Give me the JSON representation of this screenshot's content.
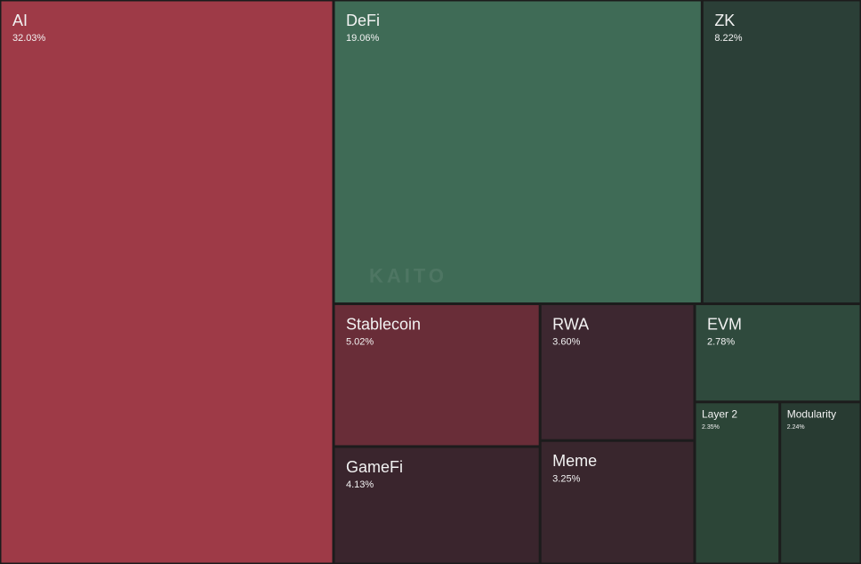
{
  "chart_data": {
    "type": "treemap",
    "watermark": "KAITO",
    "categories": [
      "AI",
      "DeFi",
      "ZK",
      "Stablecoin",
      "RWA",
      "EVM",
      "GameFi",
      "Meme",
      "Layer 2",
      "Modularity"
    ],
    "values": [
      32.03,
      19.06,
      8.22,
      5.02,
      3.6,
      2.78,
      4.13,
      3.25,
      2.35,
      2.24
    ],
    "value_labels": [
      "32.03%",
      "19.06%",
      "8.22%",
      "5.02%",
      "3.60%",
      "2.78%",
      "4.13%",
      "3.25%",
      "2.35%",
      "2.24%"
    ],
    "colors": [
      "#9e3a47",
      "#3f6b56",
      "#2b3f37",
      "#692d38",
      "#3d2730",
      "#2f4a3d",
      "#3a252d",
      "#39262d",
      "#2c4537",
      "#283b32"
    ]
  }
}
